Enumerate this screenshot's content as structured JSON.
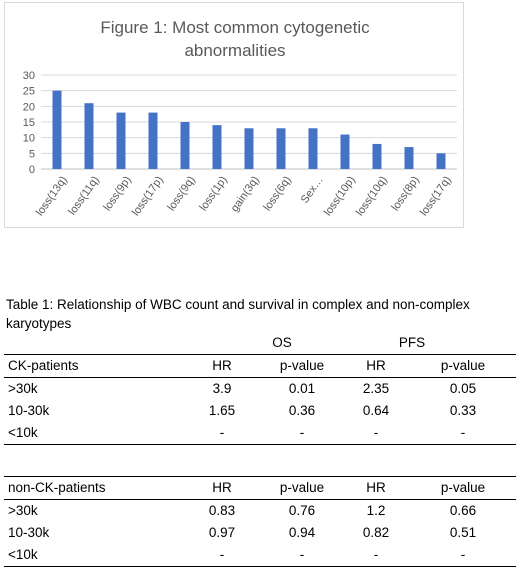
{
  "figure": {
    "title_line1": "Figure 1:  Most common cytogenetic",
    "title_line2": "abnormalities"
  },
  "chart_data": {
    "type": "bar",
    "title": "Figure 1:  Most common cytogenetic abnormalities",
    "categories": [
      "loss(13q)",
      "loss(11q)",
      "loss(9p)",
      "loss(17p)",
      "loss(9q)",
      "loss(1p)",
      "gain(3q)",
      "loss(6q)",
      "Sex…",
      "loss(10p)",
      "loss(10q)",
      "loss(8p)",
      "loss(17q)"
    ],
    "values": [
      25,
      21,
      18,
      18,
      15,
      14,
      13,
      13,
      13,
      11,
      8,
      7,
      5
    ],
    "yticks": [
      0,
      5,
      10,
      15,
      20,
      25,
      30
    ],
    "ylim": [
      0,
      30
    ],
    "grid": true,
    "bar_color": "#4472c4",
    "grid_color": "#d9d9d9"
  },
  "table": {
    "caption": "Table 1:  Relationship of WBC count and survival in complex and non-complex karyotypes",
    "groups": [
      "OS",
      "PFS"
    ],
    "sections": [
      {
        "header": [
          "CK-patients",
          "HR",
          "p-value",
          "HR",
          "p-value"
        ],
        "rows": [
          [
            ">30k",
            "3.9",
            "0.01",
            "2.35",
            "0.05"
          ],
          [
            "10-30k",
            "1.65",
            "0.36",
            "0.64",
            "0.33"
          ],
          [
            "<10k",
            "-",
            "-",
            "-",
            "-"
          ]
        ]
      },
      {
        "header": [
          "non-CK-patients",
          "HR",
          "p-value",
          "HR",
          "p-value"
        ],
        "rows": [
          [
            ">30k",
            "0.83",
            "0.76",
            "1.2",
            "0.66"
          ],
          [
            "10-30k",
            "0.97",
            "0.94",
            "0.82",
            "0.51"
          ],
          [
            "<10k",
            "-",
            "-",
            "-",
            "-"
          ]
        ]
      }
    ]
  }
}
